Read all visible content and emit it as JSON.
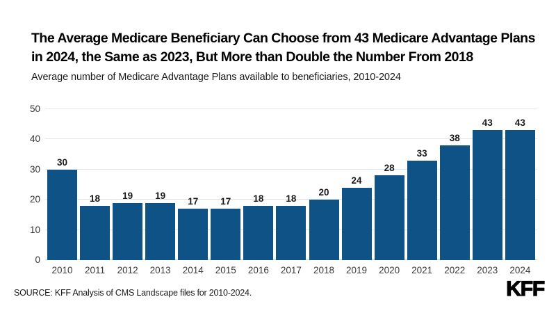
{
  "header": {
    "title_line1": "The Average Medicare Beneficiary Can Choose from 43 Medicare Advantage Plans",
    "title_line2": "in 2024, the Same as 2023, But More than Double the Number From 2018",
    "subtitle": "Average number of Medicare Advantage Plans available to beneficiaries, 2010-2024"
  },
  "chart_data": {
    "type": "bar",
    "title": "Average number of Medicare Advantage Plans available to beneficiaries, 2010-2024",
    "categories": [
      "2010",
      "2011",
      "2012",
      "2013",
      "2014",
      "2015",
      "2016",
      "2017",
      "2018",
      "2019",
      "2020",
      "2021",
      "2022",
      "2023",
      "2024"
    ],
    "values": [
      30,
      18,
      19,
      19,
      17,
      17,
      18,
      18,
      20,
      24,
      28,
      33,
      38,
      43,
      43
    ],
    "xlabel": "",
    "ylabel": "",
    "ylim": [
      0,
      50
    ],
    "yticks": [
      0,
      10,
      20,
      30,
      40,
      50
    ],
    "grid": true,
    "legend_position": "none",
    "value_labels": true,
    "bar_color": "#0E5286"
  },
  "footer": {
    "source": "SOURCE: KFF Analysis of CMS Landscape files for 2010-2024.",
    "logo_text": "KFF"
  },
  "colors": {
    "bar": "#0E5286",
    "gridline": "#e4e4e4",
    "baseline": "#c2d2de",
    "title_text": "#000000",
    "tick_text": "#333333"
  }
}
